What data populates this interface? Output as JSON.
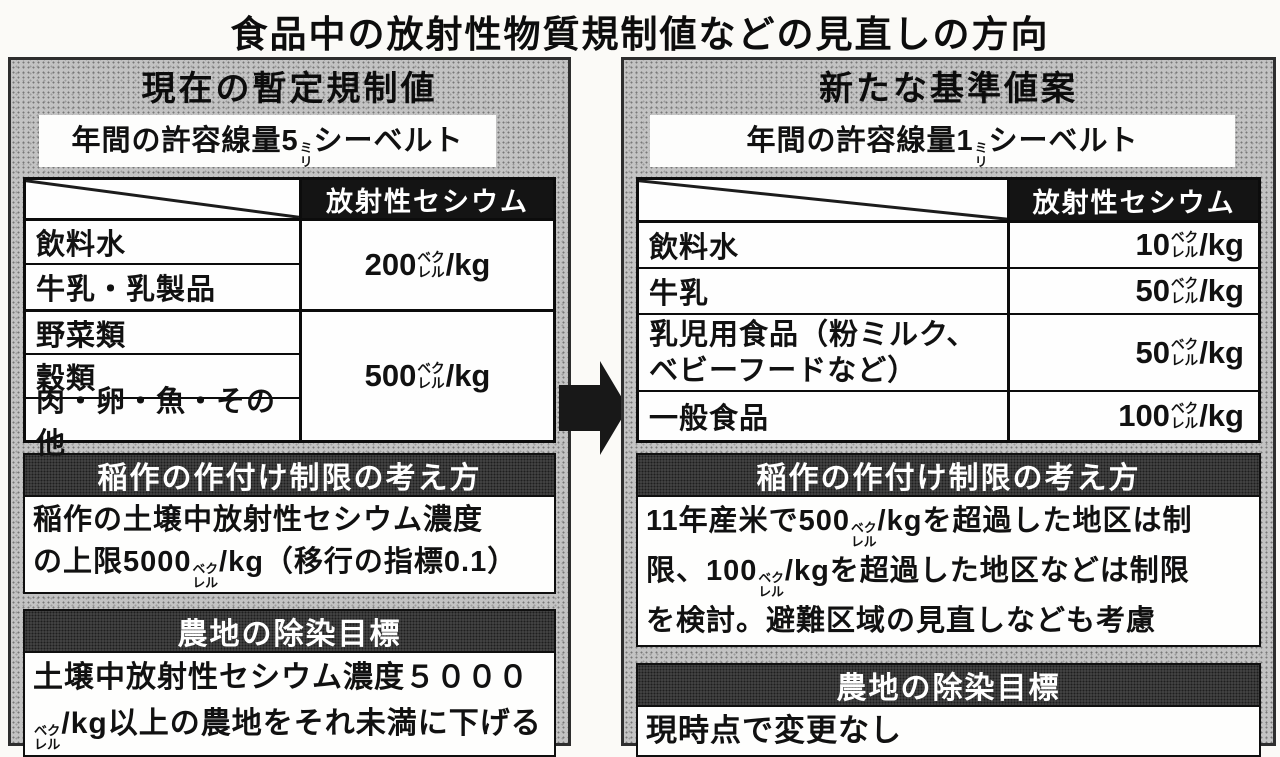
{
  "page_title": "食品中の放射性物質規制値などの見直しの方向",
  "cesium_header": "放射性セシウム",
  "panels": {
    "current": {
      "title": "現在の暫定規制値",
      "dose_line": [
        "年間の許容線量5",
        {
          "up": "ミ",
          "down": "リ"
        },
        "シーベルト"
      ],
      "table": {
        "header": "放射性セシウム",
        "rows": [
          "飲料水",
          "牛乳・乳製品",
          "野菜類",
          "穀類",
          "肉・卵・魚・その他"
        ],
        "values": [
          [
            "200",
            {
              "up": "ベク",
              "down": "レル"
            },
            "/kg"
          ],
          [
            "500",
            {
              "up": "ベク",
              "down": "レル"
            },
            "/kg"
          ]
        ]
      },
      "sections": [
        {
          "heading": "稲作の作付け制限の考え方",
          "lines": [
            [
              "稲作の土壌中放射性セシウム濃度"
            ],
            [
              "の上限5000",
              {
                "up": "ベク",
                "down": "レル"
              },
              "/kg（移行の指標0.1）"
            ]
          ]
        },
        {
          "heading": "農地の除染目標",
          "lines": [
            [
              "土壌中放射性セシウム濃度５０００"
            ],
            [
              {
                "up": "ベク",
                "down": "レル"
              },
              "/kg以上の農地をそれ未満に下げる"
            ]
          ]
        }
      ]
    },
    "proposed": {
      "title": "新たな基準値案",
      "dose_line": [
        "年間の許容線量1",
        {
          "up": "ミ",
          "down": "リ"
        },
        "シーベルト"
      ],
      "table": {
        "header": "放射性セシウム",
        "rows": [
          "飲料水",
          "牛乳",
          "乳児用食品（粉ミルク、ベビーフードなど）",
          "一般食品"
        ],
        "values": [
          [
            "10",
            {
              "up": "ベク",
              "down": "レル"
            },
            "/kg"
          ],
          [
            "50",
            {
              "up": "ベク",
              "down": "レル"
            },
            "/kg"
          ],
          [
            "50",
            {
              "up": "ベク",
              "down": "レル"
            },
            "/kg"
          ],
          [
            "100",
            {
              "up": "ベク",
              "down": "レル"
            },
            "/kg"
          ]
        ]
      },
      "sections": [
        {
          "heading": "稲作の作付け制限の考え方",
          "lines": [
            [
              "11年産米で500",
              {
                "up": "ベク",
                "down": "レル"
              },
              "/kgを超過した地区は制"
            ],
            [
              "限、100",
              {
                "up": "ベク",
                "down": "レル"
              },
              "/kgを超過した地区などは制限"
            ],
            [
              "を検討。避難区域の見直しなども考慮"
            ]
          ]
        },
        {
          "heading": "農地の除染目標",
          "lines": [
            [
              "現時点で変更なし"
            ]
          ]
        }
      ]
    }
  },
  "colors": {
    "panel_stipple": "#c3c3c3",
    "section_bar": "#4a4a4a",
    "table_header_bg": "#141414",
    "ink": "#111111",
    "paper": "#fbfaf7"
  }
}
